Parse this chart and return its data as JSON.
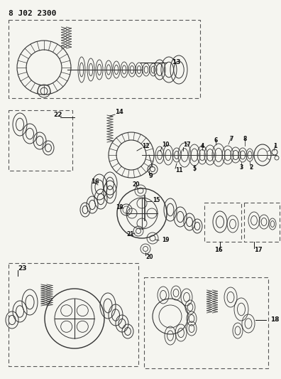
{
  "title": "8 J02 2300",
  "bg_color": "#f5f5f0",
  "line_color": "#111111",
  "part_color": "#333333",
  "fig_width": 3.96,
  "fig_height": 5.33,
  "dpi": 100
}
